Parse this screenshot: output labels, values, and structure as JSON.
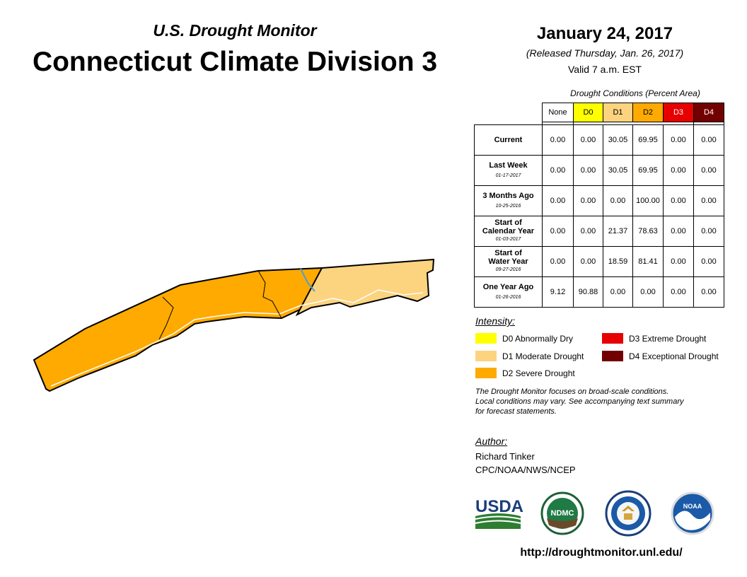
{
  "header": {
    "subtitle": "U.S. Drought Monitor",
    "title": "Connecticut Climate Division 3",
    "date": "January 24, 2017",
    "released": "(Released Thursday, Jan. 26, 2017)",
    "valid": "Valid 7 a.m. EST"
  },
  "conditions": {
    "caption": "Drought Conditions (Percent Area)",
    "columns": [
      "None",
      "D0",
      "D1",
      "D2",
      "D3",
      "D4"
    ],
    "rows": [
      {
        "label": "Current",
        "date": "",
        "values": [
          "0.00",
          "0.00",
          "30.05",
          "69.95",
          "0.00",
          "0.00"
        ]
      },
      {
        "label": "Last Week",
        "date": "01-17-2017",
        "values": [
          "0.00",
          "0.00",
          "30.05",
          "69.95",
          "0.00",
          "0.00"
        ]
      },
      {
        "label": "3 Months Ago",
        "date": "10-25-2016",
        "values": [
          "0.00",
          "0.00",
          "0.00",
          "100.00",
          "0.00",
          "0.00"
        ]
      },
      {
        "label_lines": [
          "Start of",
          "Calendar Year"
        ],
        "date": "01-03-2017",
        "values": [
          "0.00",
          "0.00",
          "21.37",
          "78.63",
          "0.00",
          "0.00"
        ]
      },
      {
        "label_lines": [
          "Start of",
          "Water Year"
        ],
        "date": "09-27-2016",
        "values": [
          "0.00",
          "0.00",
          "18.59",
          "81.41",
          "0.00",
          "0.00"
        ]
      },
      {
        "label": "One Year Ago",
        "date": "01-26-2016",
        "values": [
          "9.12",
          "90.88",
          "0.00",
          "0.00",
          "0.00",
          "0.00"
        ]
      }
    ]
  },
  "intensity": {
    "title": "Intensity:",
    "items": [
      {
        "label": "D0 Abnormally Dry",
        "color": "#ffff00"
      },
      {
        "label": "D1 Moderate Drought",
        "color": "#fcd37f"
      },
      {
        "label": "D2 Severe Drought",
        "color": "#ffaa00"
      },
      {
        "label": "D3 Extreme Drought",
        "color": "#e60000"
      },
      {
        "label": "D4 Exceptional Drought",
        "color": "#730000"
      }
    ]
  },
  "colors": {
    "none": "#ffffff",
    "d0": "#ffff00",
    "d1": "#fcd37f",
    "d2": "#ffaa00",
    "d3": "#e60000",
    "d4": "#730000",
    "water": "#4d9fd6",
    "outline": "#000000"
  },
  "note": [
    "The Drought Monitor focuses on broad-scale conditions.",
    "Local conditions may vary. See accompanying text summary",
    "for forecast statements."
  ],
  "author": {
    "label": "Author:",
    "name": "Richard Tinker",
    "org": "CPC/NOAA/NWS/NCEP"
  },
  "logos": {
    "usda": "USDA",
    "ndmc": "NDMC",
    "noaa": "NOAA",
    "commerce": "department-of-commerce-seal"
  },
  "url": "http://droughtmonitor.unl.edu/"
}
